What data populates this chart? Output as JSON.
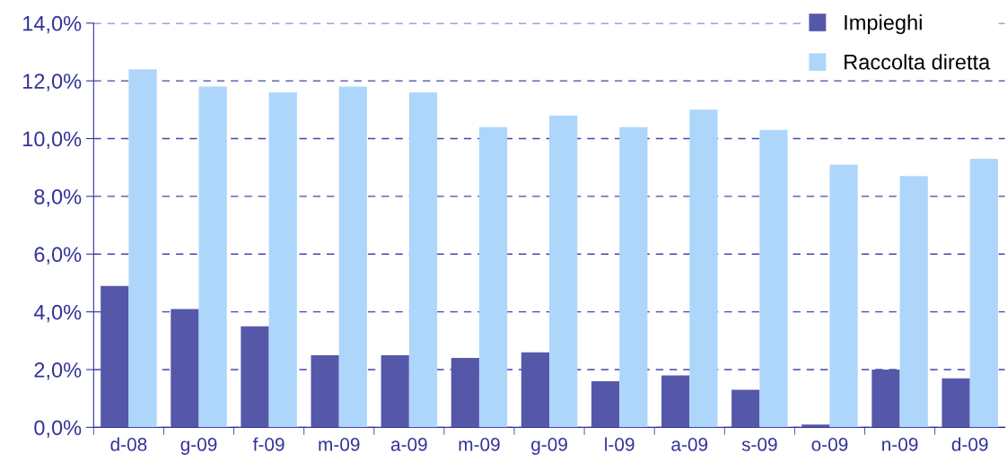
{
  "chart_data": {
    "type": "bar",
    "categories": [
      "d-08",
      "g-09",
      "f-09",
      "m-09",
      "a-09",
      "m-09",
      "g-09",
      "l-09",
      "a-09",
      "s-09",
      "o-09",
      "n-09",
      "d-09"
    ],
    "series": [
      {
        "name": "Impieghi",
        "color": "#5558a8",
        "values": [
          4.9,
          4.1,
          3.5,
          2.5,
          2.5,
          2.4,
          2.6,
          1.6,
          1.8,
          1.3,
          0.1,
          2.0,
          1.7
        ]
      },
      {
        "name": "Raccolta diretta",
        "color": "#aed6fb",
        "values": [
          12.4,
          11.8,
          11.6,
          11.8,
          11.6,
          10.4,
          10.8,
          10.4,
          11.0,
          10.3,
          9.1,
          8.7,
          9.3
        ]
      }
    ],
    "ylim": [
      0,
      14
    ],
    "yticks": [
      {
        "value": 0,
        "label": "0,0%"
      },
      {
        "value": 2,
        "label": "2,0%"
      },
      {
        "value": 4,
        "label": "4,0%"
      },
      {
        "value": 6,
        "label": "6,0%"
      },
      {
        "value": 8,
        "label": "8,0%"
      },
      {
        "value": 10,
        "label": "10,0%"
      },
      {
        "value": 12,
        "label": "12,0%"
      },
      {
        "value": 14,
        "label": "14,0%"
      }
    ],
    "grid": "y",
    "legend": "top right"
  }
}
